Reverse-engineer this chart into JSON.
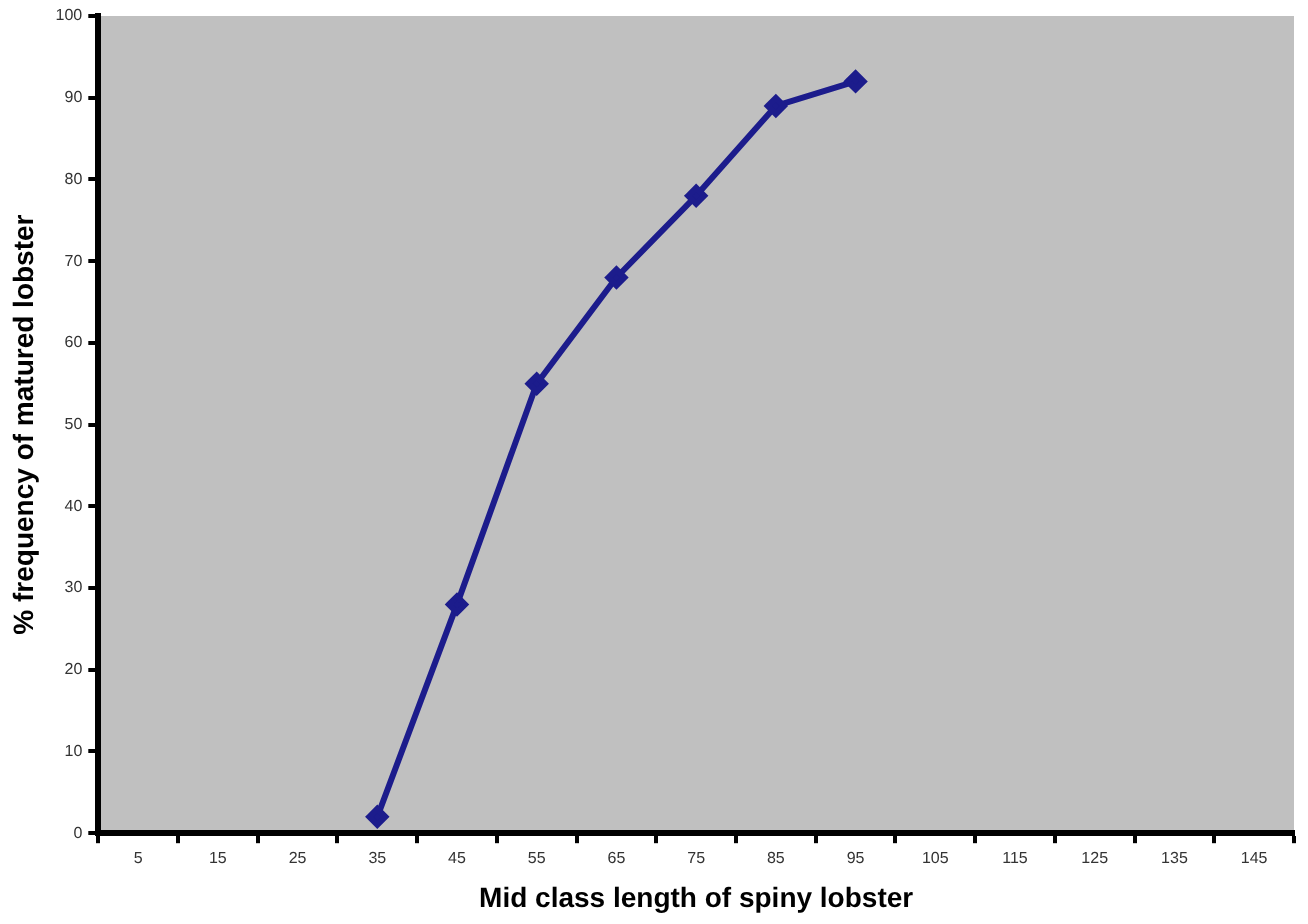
{
  "chart_data": {
    "type": "line",
    "xlabel": "Mid class length of spiny lobster",
    "ylabel": "% frequency of matured lobster",
    "categories": [
      "5",
      "15",
      "25",
      "35",
      "45",
      "55",
      "65",
      "75",
      "85",
      "95",
      "105",
      "115",
      "125",
      "135",
      "145"
    ],
    "series": [
      {
        "color": "#1c1c8c",
        "values": [
          null,
          null,
          null,
          2,
          28,
          55,
          68,
          78,
          89,
          92,
          null,
          null,
          null,
          null,
          null
        ]
      }
    ],
    "ylim": [
      0,
      100
    ],
    "yticks": [
      0,
      10,
      20,
      30,
      40,
      50,
      60,
      70,
      80,
      90,
      100
    ],
    "grid": false,
    "legend": false,
    "marker": "diamond",
    "line_style": "solid"
  }
}
